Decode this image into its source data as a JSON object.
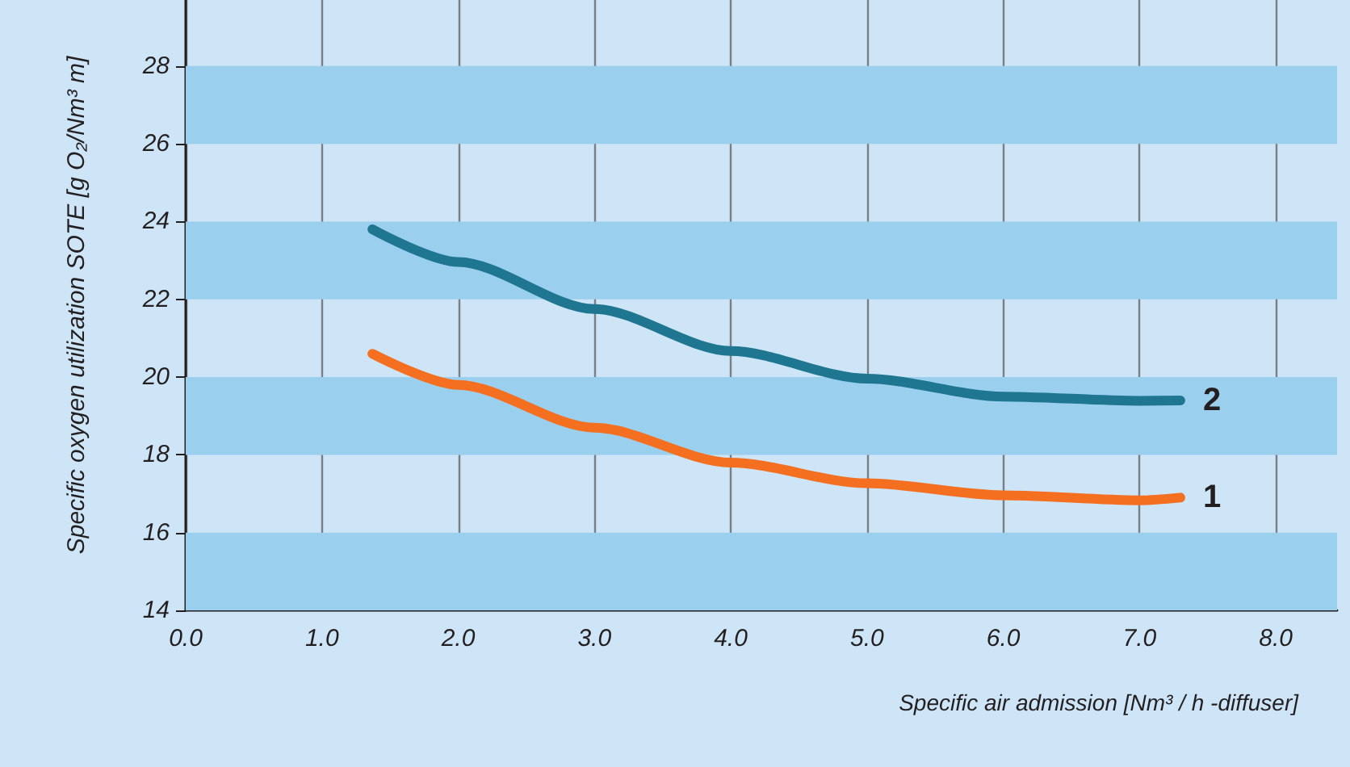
{
  "chart_data": {
    "type": "line",
    "xlabel": "Specific air admission [Nm³ / h -diffuser]",
    "ylabel": "Specific oxygen utilization SOTE [g O₂/Nm³ m]",
    "x": [
      1.37,
      2,
      3,
      4,
      5,
      6,
      7,
      7.3
    ],
    "series": [
      {
        "name": "2",
        "color": "#1f7691",
        "values": [
          23.8,
          22.96,
          21.75,
          20.67,
          19.96,
          19.5,
          19.39,
          19.4
        ]
      },
      {
        "name": "1",
        "color": "#f47020",
        "values": [
          20.6,
          19.8,
          18.7,
          17.8,
          17.27,
          16.96,
          16.83,
          16.9
        ]
      }
    ],
    "xlim": [
      0,
      8.45
    ],
    "xticks": [
      {
        "value": 0,
        "label": "0.0"
      },
      {
        "value": 1,
        "label": "1.0"
      },
      {
        "value": 2,
        "label": "2.0"
      },
      {
        "value": 3,
        "label": "3.0"
      },
      {
        "value": 4,
        "label": "4.0"
      },
      {
        "value": 5,
        "label": "5.0"
      },
      {
        "value": 6,
        "label": "6.0"
      },
      {
        "value": 7,
        "label": "7.0"
      },
      {
        "value": 8,
        "label": "8.0"
      }
    ],
    "ylim": [
      14,
      29.7
    ],
    "yticks": [
      14,
      16,
      18,
      20,
      22,
      24,
      26,
      28
    ],
    "bands": [
      {
        "axis": "y",
        "from": 14,
        "to": 16,
        "color": "#9bcfee"
      },
      {
        "axis": "y",
        "from": 18,
        "to": 20,
        "color": "#9bcfee"
      },
      {
        "axis": "y",
        "from": 22,
        "to": 24,
        "color": "#9bcfee"
      },
      {
        "axis": "y",
        "from": 26,
        "to": 28,
        "color": "#9bcfee"
      }
    ],
    "grid": "x",
    "legend": false,
    "marker": "none",
    "line_style": "solid"
  }
}
